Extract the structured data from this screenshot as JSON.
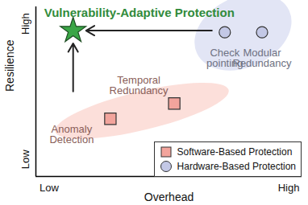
{
  "chart_data": {
    "type": "scatter",
    "xlabel": "Overhead",
    "ylabel": "Resilience",
    "xlim": [
      0,
      10
    ],
    "ylim": [
      0,
      10
    ],
    "xticks": [
      {
        "value": 0.5,
        "label": "Low"
      },
      {
        "value": 9.5,
        "label": "High"
      }
    ],
    "yticks": [
      {
        "value": 1,
        "label": "Low"
      },
      {
        "value": 9,
        "label": "High"
      }
    ],
    "grid": false,
    "legend": "lower right",
    "series": [
      {
        "name": "Software-Based Protection",
        "color": "#f2a49c",
        "marker": "square",
        "x": [
          2.8,
          5.2
        ],
        "values": [
          3.4,
          4.3
        ],
        "labels": [
          "Anomaly Detection",
          "Temporal Redundancy"
        ]
      },
      {
        "name": "Hardware-Based Protection",
        "color": "#c3c8e6",
        "marker": "circle",
        "x": [
          7.1,
          8.5
        ],
        "values": [
          8.5,
          8.5
        ],
        "labels": [
          "Check pointing",
          "Modular Redundancy"
        ]
      }
    ],
    "annotations": [
      {
        "text": "Vulnerability-Adaptive Protection",
        "x": 1.4,
        "y": 8.6,
        "marker": "star",
        "color": "#3aa646"
      }
    ]
  }
}
